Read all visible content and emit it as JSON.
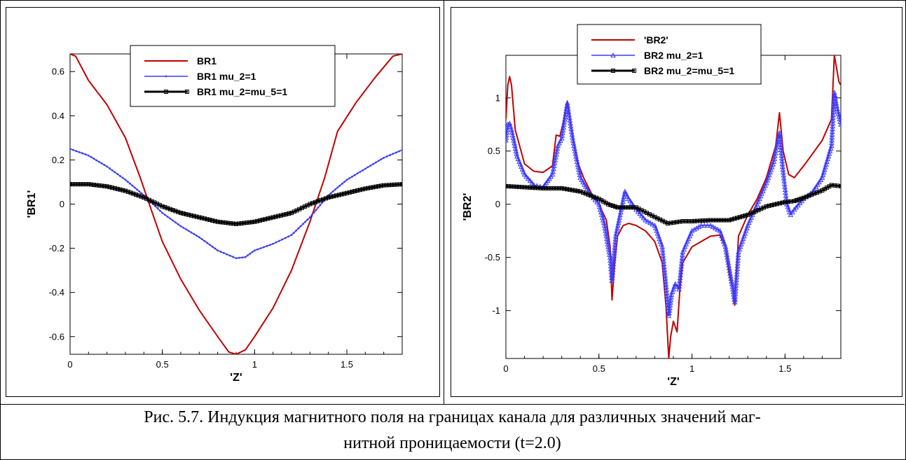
{
  "caption": {
    "line1": "Рис. 5.7. Индукция магнитного поля на границах канала для различных значений маг-",
    "line2": "нитной проницаемости (t=2.0)"
  },
  "chart_data": [
    {
      "type": "line",
      "xlabel": "'Z'",
      "ylabel": "'BR1'",
      "xlim": [
        0,
        1.8
      ],
      "ylim": [
        -0.68,
        0.68
      ],
      "xticks": [
        0,
        0.5,
        1,
        1.5
      ],
      "xtick_labels": [
        "0",
        "0.5",
        "1",
        "1.5"
      ],
      "yticks": [
        -0.6,
        -0.4,
        -0.2,
        0,
        0.2,
        0.4,
        0.6
      ],
      "ytick_labels": [
        "-0.6",
        "-0.4",
        "-0.2",
        "0",
        "0.2",
        "0.4",
        "0.6"
      ],
      "grid": false,
      "legend_position": "top-center",
      "series": [
        {
          "name": "BR1",
          "color": "#c00000",
          "marker": "none",
          "points": [
            [
              0,
              0.68
            ],
            [
              0.03,
              0.67
            ],
            [
              0.1,
              0.56
            ],
            [
              0.2,
              0.45
            ],
            [
              0.3,
              0.3
            ],
            [
              0.38,
              0.12
            ],
            [
              0.45,
              -0.05
            ],
            [
              0.5,
              -0.17
            ],
            [
              0.6,
              -0.34
            ],
            [
              0.7,
              -0.48
            ],
            [
              0.8,
              -0.6
            ],
            [
              0.86,
              -0.67
            ],
            [
              0.9,
              -0.68
            ],
            [
              0.95,
              -0.66
            ],
            [
              1.0,
              -0.6
            ],
            [
              1.1,
              -0.47
            ],
            [
              1.2,
              -0.3
            ],
            [
              1.3,
              -0.08
            ],
            [
              1.38,
              0.12
            ],
            [
              1.45,
              0.33
            ],
            [
              1.55,
              0.46
            ],
            [
              1.65,
              0.57
            ],
            [
              1.75,
              0.67
            ],
            [
              1.8,
              0.68
            ]
          ]
        },
        {
          "name": "BR1 mu_2=1",
          "color": "#3a3aff",
          "marker": "small-dot",
          "points": [
            [
              0,
              0.25
            ],
            [
              0.1,
              0.22
            ],
            [
              0.2,
              0.17
            ],
            [
              0.3,
              0.11
            ],
            [
              0.4,
              0.04
            ],
            [
              0.5,
              -0.04
            ],
            [
              0.6,
              -0.1
            ],
            [
              0.7,
              -0.15
            ],
            [
              0.8,
              -0.21
            ],
            [
              0.9,
              -0.245
            ],
            [
              0.95,
              -0.24
            ],
            [
              1.0,
              -0.21
            ],
            [
              1.1,
              -0.18
            ],
            [
              1.2,
              -0.14
            ],
            [
              1.3,
              -0.06
            ],
            [
              1.4,
              0.04
            ],
            [
              1.5,
              0.11
            ],
            [
              1.6,
              0.16
            ],
            [
              1.7,
              0.21
            ],
            [
              1.8,
              0.245
            ]
          ]
        },
        {
          "name": "BR1 mu_2=mu_5=1",
          "color": "#000000",
          "marker": "square",
          "points": [
            [
              0,
              0.09
            ],
            [
              0.1,
              0.09
            ],
            [
              0.2,
              0.08
            ],
            [
              0.3,
              0.06
            ],
            [
              0.4,
              0.03
            ],
            [
              0.5,
              -0.01
            ],
            [
              0.6,
              -0.04
            ],
            [
              0.7,
              -0.06
            ],
            [
              0.8,
              -0.08
            ],
            [
              0.9,
              -0.09
            ],
            [
              1.0,
              -0.08
            ],
            [
              1.1,
              -0.06
            ],
            [
              1.2,
              -0.04
            ],
            [
              1.3,
              0.0
            ],
            [
              1.4,
              0.03
            ],
            [
              1.5,
              0.05
            ],
            [
              1.6,
              0.07
            ],
            [
              1.7,
              0.085
            ],
            [
              1.8,
              0.09
            ]
          ]
        }
      ]
    },
    {
      "type": "line",
      "xlabel": "'Z'",
      "ylabel": "'BR2'",
      "xlim": [
        0,
        1.8
      ],
      "ylim": [
        -1.45,
        1.4
      ],
      "xticks": [
        0,
        0.5,
        1,
        1.5
      ],
      "xtick_labels": [
        "0",
        "0.5",
        "1",
        "1.5"
      ],
      "yticks": [
        -1,
        -0.5,
        0,
        0.5,
        1
      ],
      "ytick_labels": [
        "-1",
        "-0.5",
        "0",
        "0.5",
        "1"
      ],
      "grid": false,
      "legend_position": "top-center",
      "series": [
        {
          "name": "'BR2'",
          "color": "#c00000",
          "marker": "none",
          "points": [
            [
              0,
              0.8
            ],
            [
              0.01,
              1.12
            ],
            [
              0.02,
              1.2
            ],
            [
              0.03,
              1.12
            ],
            [
              0.05,
              0.7
            ],
            [
              0.1,
              0.38
            ],
            [
              0.15,
              0.31
            ],
            [
              0.2,
              0.3
            ],
            [
              0.25,
              0.36
            ],
            [
              0.27,
              0.65
            ],
            [
              0.29,
              0.64
            ],
            [
              0.31,
              0.78
            ],
            [
              0.33,
              0.97
            ],
            [
              0.35,
              0.72
            ],
            [
              0.38,
              0.42
            ],
            [
              0.42,
              0.24
            ],
            [
              0.46,
              0.1
            ],
            [
              0.5,
              0.0
            ],
            [
              0.54,
              -0.15
            ],
            [
              0.56,
              -0.4
            ],
            [
              0.57,
              -0.9
            ],
            [
              0.585,
              -0.55
            ],
            [
              0.6,
              -0.3
            ],
            [
              0.63,
              -0.2
            ],
            [
              0.66,
              -0.18
            ],
            [
              0.7,
              -0.2
            ],
            [
              0.75,
              -0.25
            ],
            [
              0.8,
              -0.35
            ],
            [
              0.84,
              -0.55
            ],
            [
              0.86,
              -0.95
            ],
            [
              0.875,
              -1.45
            ],
            [
              0.885,
              -1.25
            ],
            [
              0.9,
              -1.1
            ],
            [
              0.92,
              -1.2
            ],
            [
              0.935,
              -0.8
            ],
            [
              0.95,
              -0.55
            ],
            [
              1.0,
              -0.4
            ],
            [
              1.05,
              -0.35
            ],
            [
              1.1,
              -0.3
            ],
            [
              1.15,
              -0.29
            ],
            [
              1.18,
              -0.4
            ],
            [
              1.2,
              -0.65
            ],
            [
              1.22,
              -0.8
            ],
            [
              1.23,
              -0.95
            ],
            [
              1.25,
              -0.3
            ],
            [
              1.3,
              -0.1
            ],
            [
              1.35,
              0.05
            ],
            [
              1.4,
              0.25
            ],
            [
              1.45,
              0.55
            ],
            [
              1.47,
              0.86
            ],
            [
              1.49,
              0.5
            ],
            [
              1.52,
              0.28
            ],
            [
              1.55,
              0.25
            ],
            [
              1.6,
              0.36
            ],
            [
              1.65,
              0.48
            ],
            [
              1.7,
              0.6
            ],
            [
              1.75,
              0.8
            ],
            [
              1.765,
              1.4
            ],
            [
              1.78,
              1.25
            ],
            [
              1.79,
              1.15
            ],
            [
              1.8,
              1.12
            ]
          ]
        },
        {
          "name": "BR2 mu_2=1",
          "color": "#3a3aff",
          "marker": "triangle",
          "points": [
            [
              0,
              0.6
            ],
            [
              0.01,
              0.75
            ],
            [
              0.02,
              0.76
            ],
            [
              0.03,
              0.7
            ],
            [
              0.06,
              0.45
            ],
            [
              0.1,
              0.28
            ],
            [
              0.15,
              0.18
            ],
            [
              0.2,
              0.16
            ],
            [
              0.25,
              0.28
            ],
            [
              0.28,
              0.55
            ],
            [
              0.3,
              0.62
            ],
            [
              0.33,
              0.95
            ],
            [
              0.36,
              0.6
            ],
            [
              0.4,
              0.25
            ],
            [
              0.45,
              0.1
            ],
            [
              0.5,
              0.0
            ],
            [
              0.53,
              -0.2
            ],
            [
              0.56,
              -0.5
            ],
            [
              0.57,
              -0.72
            ],
            [
              0.59,
              -0.3
            ],
            [
              0.62,
              -0.05
            ],
            [
              0.64,
              0.12
            ],
            [
              0.66,
              0.05
            ],
            [
              0.7,
              -0.05
            ],
            [
              0.75,
              -0.15
            ],
            [
              0.8,
              -0.2
            ],
            [
              0.84,
              -0.4
            ],
            [
              0.86,
              -0.75
            ],
            [
              0.875,
              -1.05
            ],
            [
              0.89,
              -0.85
            ],
            [
              0.91,
              -0.75
            ],
            [
              0.93,
              -0.8
            ],
            [
              0.95,
              -0.45
            ],
            [
              1.0,
              -0.25
            ],
            [
              1.05,
              -0.2
            ],
            [
              1.1,
              -0.2
            ],
            [
              1.15,
              -0.25
            ],
            [
              1.18,
              -0.4
            ],
            [
              1.2,
              -0.6
            ],
            [
              1.22,
              -0.8
            ],
            [
              1.23,
              -0.92
            ],
            [
              1.25,
              -0.45
            ],
            [
              1.3,
              -0.2
            ],
            [
              1.35,
              0.0
            ],
            [
              1.4,
              0.2
            ],
            [
              1.44,
              0.4
            ],
            [
              1.47,
              0.67
            ],
            [
              1.49,
              0.3
            ],
            [
              1.51,
              0.0
            ],
            [
              1.53,
              -0.1
            ],
            [
              1.55,
              -0.05
            ],
            [
              1.6,
              0.05
            ],
            [
              1.65,
              0.12
            ],
            [
              1.7,
              0.25
            ],
            [
              1.75,
              0.55
            ],
            [
              1.765,
              1.05
            ],
            [
              1.78,
              0.9
            ],
            [
              1.8,
              0.75
            ]
          ]
        },
        {
          "name": "BR2 mu_2=mu_5=1",
          "color": "#000000",
          "marker": "square",
          "points": [
            [
              0,
              0.17
            ],
            [
              0.1,
              0.16
            ],
            [
              0.2,
              0.15
            ],
            [
              0.3,
              0.15
            ],
            [
              0.4,
              0.12
            ],
            [
              0.5,
              0.05
            ],
            [
              0.55,
              0.0
            ],
            [
              0.6,
              -0.03
            ],
            [
              0.7,
              -0.03
            ],
            [
              0.8,
              -0.12
            ],
            [
              0.87,
              -0.18
            ],
            [
              0.95,
              -0.16
            ],
            [
              1.0,
              -0.16
            ],
            [
              1.1,
              -0.15
            ],
            [
              1.2,
              -0.15
            ],
            [
              1.3,
              -0.1
            ],
            [
              1.4,
              -0.02
            ],
            [
              1.5,
              0.02
            ],
            [
              1.55,
              0.03
            ],
            [
              1.6,
              0.06
            ],
            [
              1.7,
              0.13
            ],
            [
              1.75,
              0.18
            ],
            [
              1.8,
              0.17
            ]
          ]
        }
      ]
    }
  ]
}
